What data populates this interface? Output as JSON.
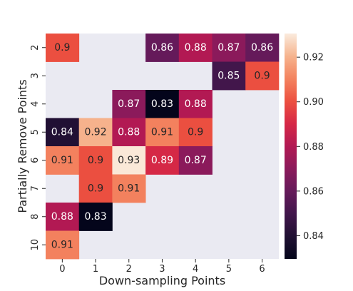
{
  "chart_data": {
    "type": "heatmap",
    "title": "",
    "xlabel": "Down-sampling Points",
    "ylabel": "Partially Remove Points",
    "x_categories": [
      "0",
      "1",
      "2",
      "3",
      "4",
      "5",
      "6"
    ],
    "y_categories": [
      "2",
      "3",
      "4",
      "5",
      "6",
      "7",
      "8",
      "10"
    ],
    "values": [
      [
        0.9,
        null,
        null,
        0.86,
        0.88,
        0.87,
        0.86
      ],
      [
        null,
        null,
        null,
        null,
        null,
        0.85,
        0.9
      ],
      [
        null,
        null,
        0.87,
        0.83,
        0.88,
        null,
        null
      ],
      [
        0.84,
        0.92,
        0.88,
        0.91,
        0.9,
        null,
        null
      ],
      [
        0.91,
        0.9,
        0.93,
        0.89,
        0.87,
        null,
        null
      ],
      [
        null,
        0.9,
        0.91,
        null,
        null,
        null,
        null
      ],
      [
        0.88,
        0.83,
        null,
        null,
        null,
        null,
        null
      ],
      [
        0.91,
        null,
        null,
        null,
        null,
        null,
        null
      ]
    ],
    "annotations": [
      [
        "0.9",
        "",
        "",
        "0.86",
        "0.88",
        "0.87",
        "0.86"
      ],
      [
        "",
        "",
        "",
        "",
        "",
        "0.85",
        "0.9"
      ],
      [
        "",
        "",
        "0.87",
        "0.83",
        "0.88",
        "",
        ""
      ],
      [
        "0.84",
        "0.92",
        "0.88",
        "0.91",
        "0.9",
        "",
        ""
      ],
      [
        "0.91",
        "0.9",
        "0.93",
        "0.89",
        "0.87",
        "",
        ""
      ],
      [
        "",
        "0.9",
        "0.91",
        "",
        "",
        "",
        ""
      ],
      [
        "0.88",
        "0.83",
        "",
        "",
        "",
        "",
        ""
      ],
      [
        "0.91",
        "",
        "",
        "",
        "",
        "",
        ""
      ]
    ],
    "colorbar": {
      "vmin": 0.8296,
      "vmax": 0.9306,
      "ticks": [
        0.84,
        0.86,
        0.88,
        0.9,
        0.92
      ],
      "tick_labels": [
        "0.84",
        "0.86",
        "0.88",
        "0.90",
        "0.92"
      ]
    },
    "colormap": "rocket",
    "missing_color": "#eaeaf2",
    "grid": false,
    "legend": "none"
  }
}
